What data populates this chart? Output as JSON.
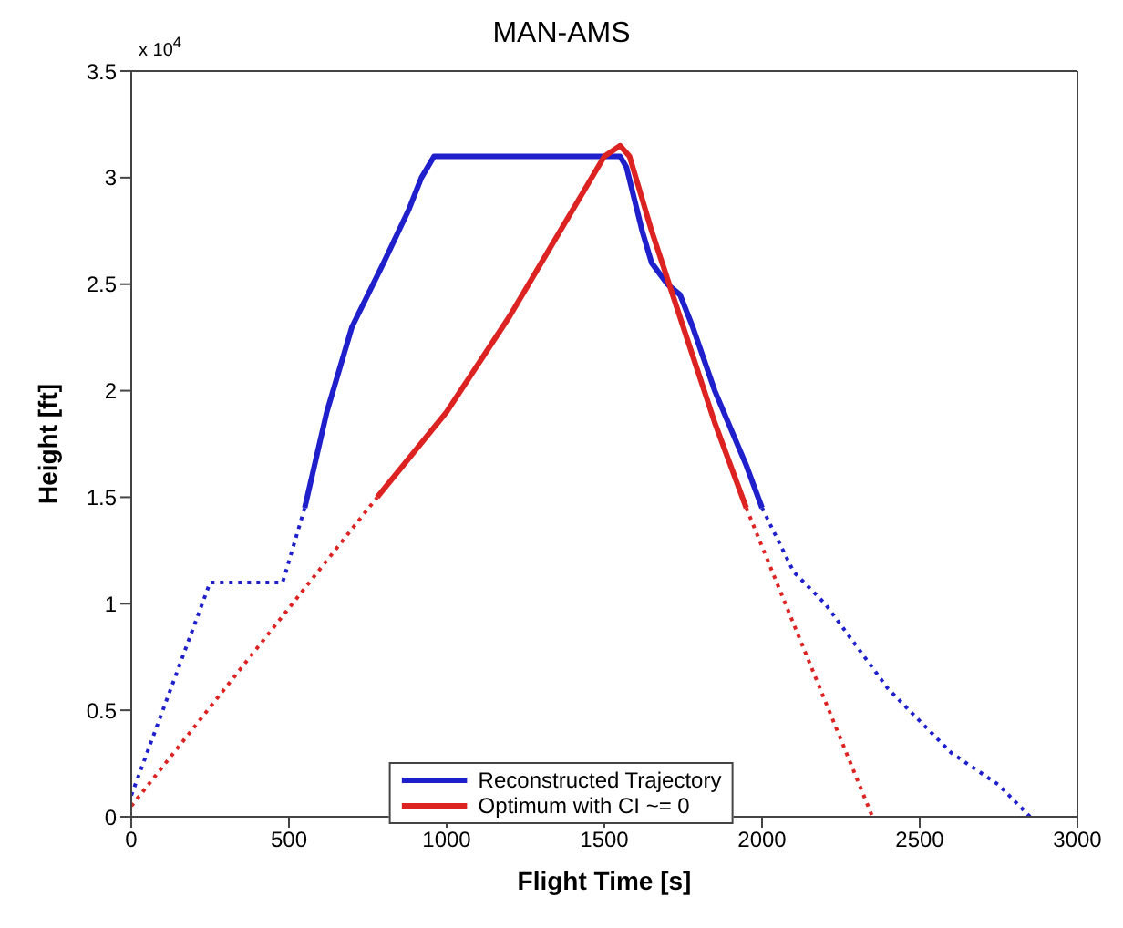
{
  "chart_data": {
    "type": "line",
    "title": "MAN-AMS",
    "xlabel": "Flight Time [s]",
    "ylabel": "Height [ft]",
    "annotations": [
      "x 10$^{4}$"
    ],
    "xlim": [
      0,
      3000
    ],
    "xticks": [
      0,
      500,
      1000,
      1500,
      2000,
      2500,
      3000
    ],
    "ylim": [
      0,
      3.5
    ],
    "yticks": [
      0,
      0.5,
      1,
      1.5,
      2,
      2.5,
      3,
      3.5
    ],
    "grid": false,
    "legend": "bottom",
    "marker": "none",
    "series": [
      {
        "name": "Reconstructed Trajectory",
        "color": "#1f1fcc",
        "line_style": "solid",
        "x": [
          550,
          620,
          700,
          800,
          880,
          920,
          960,
          1500,
          1550,
          1570,
          1620,
          1650,
          1700,
          1740,
          1780,
          1850,
          1950,
          2000
        ],
        "values": [
          1.45,
          1.9,
          2.3,
          2.6,
          2.85,
          3.0,
          3.1,
          3.1,
          3.1,
          3.05,
          2.75,
          2.6,
          2.5,
          2.45,
          2.3,
          2.0,
          1.65,
          1.45
        ]
      },
      {
        "name": "Optimum with CI ~= 0",
        "color": "#dd2222",
        "line_style": "solid",
        "x": [
          780,
          1000,
          1200,
          1400,
          1500,
          1550,
          1580,
          1650,
          1750,
          1850,
          1950
        ],
        "values": [
          1.5,
          1.9,
          2.35,
          2.85,
          3.1,
          3.15,
          3.1,
          2.75,
          2.3,
          1.85,
          1.45
        ]
      },
      {
        "color": "#1f1fcc",
        "line_style": "dotted",
        "x": [
          0,
          250,
          480,
          550
        ],
        "values": [
          0.1,
          1.1,
          1.1,
          1.45
        ]
      },
      {
        "color": "#1f1fcc",
        "line_style": "dotted",
        "x": [
          2000,
          2100,
          2200,
          2300,
          2400,
          2500,
          2600,
          2700,
          2750,
          2850
        ],
        "values": [
          1.45,
          1.15,
          1.0,
          0.8,
          0.6,
          0.45,
          0.3,
          0.2,
          0.15,
          0
        ]
      },
      {
        "color": "#dd2222",
        "line_style": "dotted",
        "x": [
          0,
          780
        ],
        "values": [
          0.05,
          1.5
        ]
      },
      {
        "color": "#dd2222",
        "line_style": "dotted",
        "x": [
          1950,
          2350
        ],
        "values": [
          1.45,
          0
        ]
      }
    ]
  }
}
